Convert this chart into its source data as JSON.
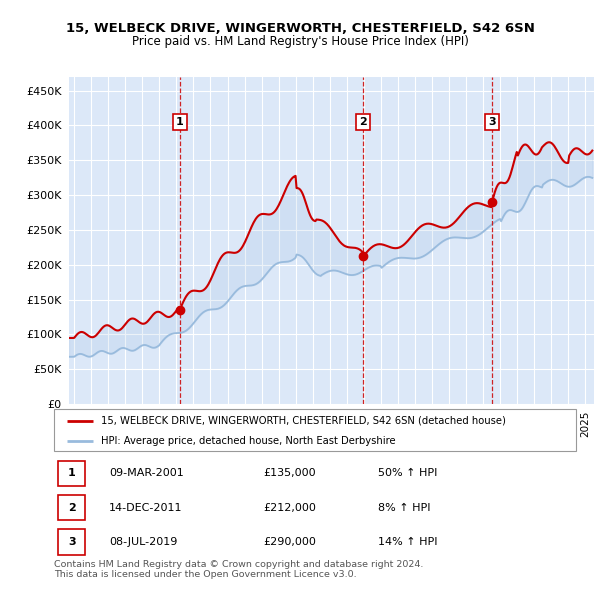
{
  "title": "15, WELBECK DRIVE, WINGERWORTH, CHESTERFIELD, S42 6SN",
  "subtitle": "Price paid vs. HM Land Registry's House Price Index (HPI)",
  "ylim": [
    0,
    470000
  ],
  "yticks": [
    0,
    50000,
    100000,
    150000,
    200000,
    250000,
    300000,
    350000,
    400000,
    450000
  ],
  "xlim_start": 1994.7,
  "xlim_end": 2025.5,
  "bg_color": "#ffffff",
  "plot_bg_color": "#dce8f8",
  "grid_color": "#ffffff",
  "red_line_color": "#cc0000",
  "blue_line_color": "#99bbdd",
  "sale_marker_color": "#cc0000",
  "sale_vline_color": "#cc0000",
  "transactions": [
    {
      "num": 1,
      "date_str": "09-MAR-2001",
      "year": 2001.19,
      "price": 135000,
      "pct": "50%",
      "dir": "↑"
    },
    {
      "num": 2,
      "date_str": "14-DEC-2011",
      "year": 2011.96,
      "price": 212000,
      "pct": "8%",
      "dir": "↑"
    },
    {
      "num": 3,
      "date_str": "08-JUL-2019",
      "year": 2019.52,
      "price": 290000,
      "pct": "14%",
      "dir": "↑"
    }
  ],
  "trans_years": [
    2001.19,
    2011.96,
    2019.52
  ],
  "trans_prices": [
    135000,
    212000,
    290000
  ],
  "legend_label_red": "15, WELBECK DRIVE, WINGERWORTH, CHESTERFIELD, S42 6SN (detached house)",
  "legend_label_blue": "HPI: Average price, detached house, North East Derbyshire",
  "footer_text": "Contains HM Land Registry data © Crown copyright and database right 2024.\nThis data is licensed under the Open Government Licence v3.0.",
  "table_rows": [
    {
      "num": 1,
      "date": "09-MAR-2001",
      "price": "£135,000",
      "pct": "50% ↑ HPI"
    },
    {
      "num": 2,
      "date": "14-DEC-2011",
      "price": "£212,000",
      "pct": "8% ↑ HPI"
    },
    {
      "num": 3,
      "date": "08-JUL-2019",
      "price": "£290,000",
      "pct": "14% ↑ HPI"
    }
  ]
}
